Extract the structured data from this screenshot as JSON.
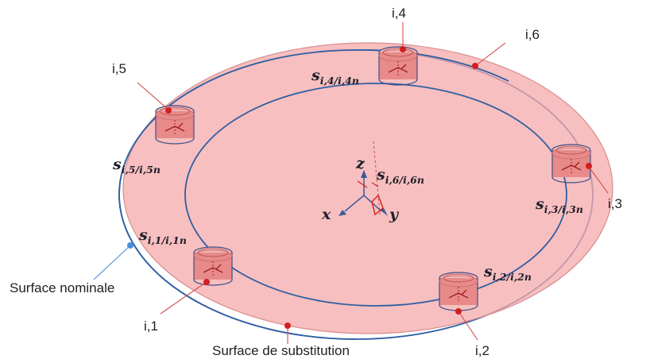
{
  "labels": {
    "point_i1": "i,1",
    "point_i2": "i,2",
    "point_i3": "i,3",
    "point_i4": "i,4",
    "point_i5": "i,5",
    "point_i6": "i,6",
    "surface_nominale": "Surface nominale",
    "surface_substitution": "Surface de substitution"
  },
  "torsors": {
    "s1": {
      "base": "s",
      "sub": "i,1/i,1n"
    },
    "s2": {
      "base": "s",
      "sub": "i,2/i,2n"
    },
    "s3": {
      "base": "s",
      "sub": "i,3/i,3n"
    },
    "s4": {
      "base": "s",
      "sub": "i,4/i,4n"
    },
    "s5": {
      "base": "s",
      "sub": "i,5/i,5n"
    },
    "s6": {
      "base": "s",
      "sub": "i,6/i,6n"
    }
  },
  "axes": {
    "x": "x",
    "y": "y",
    "z": "z"
  },
  "colors": {
    "substitution_fill": "#f4a9a9",
    "substitution_edge": "#d98c8c",
    "nominal_line": "#2f5fa3",
    "nominal_dot": "#4a90d9",
    "contact_dot": "#d41f1f",
    "axis_arrow": "#3a5a9a",
    "leader_line": "#d44a4a",
    "sensor_fill": "#e77c7c",
    "text": "#222222"
  }
}
